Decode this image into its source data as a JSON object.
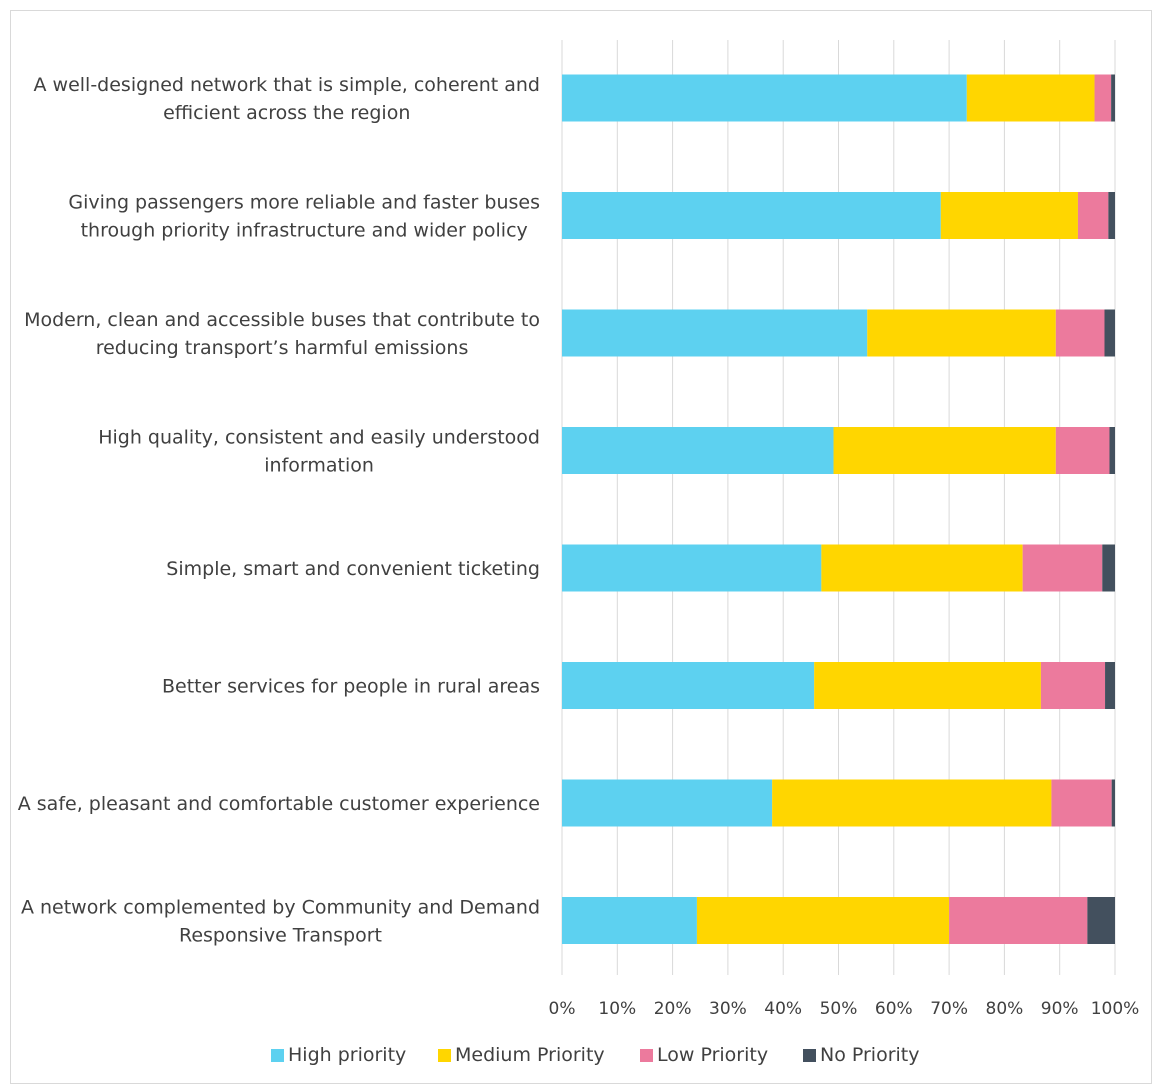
{
  "chart_data": {
    "type": "bar",
    "orientation": "horizontal",
    "stacked": "percent",
    "categories": [
      [
        "A well-designed network that is simple, coherent and",
        "efficient across the region"
      ],
      [
        "Giving passengers more reliable and faster buses",
        "through priority infrastructure and wider policy"
      ],
      [
        "Modern, clean and accessible buses that contribute to",
        "reducing transport’s harmful emissions"
      ],
      [
        "High quality, consistent and easily understood",
        "information"
      ],
      [
        "Simple, smart and convenient ticketing"
      ],
      [
        "Better services for people in rural areas"
      ],
      [
        "A safe, pleasant and comfortable customer experience"
      ],
      [
        "A network complemented by Community and Demand",
        "Responsive Transport"
      ]
    ],
    "series": [
      {
        "name": "High priority",
        "color": "#5dd1f0",
        "values": [
          73.2,
          68.5,
          55.2,
          49.1,
          46.9,
          45.6,
          38.0,
          24.4
        ]
      },
      {
        "name": "Medium Priority",
        "color": "#ffd600",
        "values": [
          23.1,
          24.8,
          34.1,
          40.2,
          36.4,
          41.0,
          50.5,
          45.6
        ]
      },
      {
        "name": "Low Priority",
        "color": "#ec7a9d",
        "values": [
          3.0,
          5.5,
          8.8,
          9.7,
          14.4,
          11.6,
          10.9,
          25.0
        ]
      },
      {
        "name": "No Priority",
        "color": "#43505e",
        "values": [
          0.7,
          1.2,
          1.9,
          1.0,
          2.3,
          1.8,
          0.6,
          5.0
        ]
      }
    ],
    "xticks": [
      "0%",
      "10%",
      "20%",
      "30%",
      "40%",
      "50%",
      "60%",
      "70%",
      "80%",
      "90%",
      "100%"
    ],
    "xlim": [
      0,
      100
    ],
    "grid": true,
    "legend": "bottom",
    "title": "",
    "xlabel": "",
    "ylabel": ""
  }
}
